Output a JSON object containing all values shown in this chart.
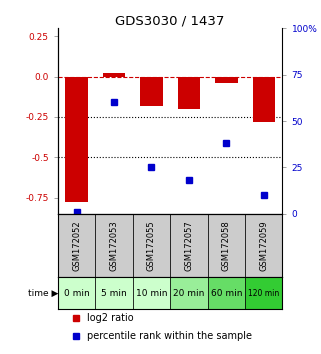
{
  "title": "GDS3030 / 1437",
  "samples": [
    "GSM172052",
    "GSM172053",
    "GSM172055",
    "GSM172057",
    "GSM172058",
    "GSM172059"
  ],
  "time_labels": [
    "0 min",
    "5 min",
    "10 min",
    "20 min",
    "60 min",
    "120 min"
  ],
  "log2_ratio": [
    -0.78,
    0.02,
    -0.18,
    -0.2,
    -0.04,
    -0.28
  ],
  "percentile_rank": [
    1,
    60,
    25,
    18,
    38,
    10
  ],
  "bar_color": "#cc0000",
  "dot_color": "#0000cc",
  "left_ylim": [
    -0.85,
    0.3
  ],
  "right_ylim": [
    0,
    100
  ],
  "left_yticks": [
    0.25,
    0.0,
    -0.25,
    -0.5,
    -0.75
  ],
  "right_yticks": [
    100,
    75,
    50,
    25,
    0
  ],
  "dotted_lines": [
    -0.25,
    -0.5
  ],
  "dashed_zero_color": "#cc0000",
  "bg_color": "#ffffff",
  "gsm_bg_color": "#cccccc",
  "green_shades": [
    "#ccffcc",
    "#ccffcc",
    "#ccffcc",
    "#99ee99",
    "#66dd66",
    "#33cc33"
  ]
}
